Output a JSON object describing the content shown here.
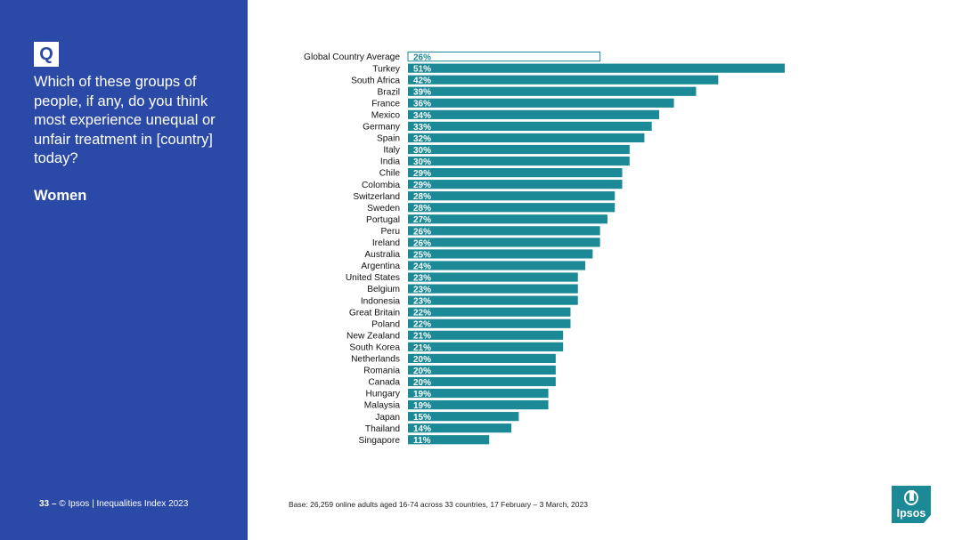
{
  "sidebar": {
    "badge": "Q",
    "question": "Which of these groups of people, if any, do you think most experience unequal or unfair treatment in [country] today?",
    "subtitle": "Women",
    "page_number": "33",
    "page_sep": "–",
    "copyright": "© Ipsos | Inequalities Index 2023"
  },
  "footer": {
    "base": "Base: 26,259 online adults aged 16-74 across 33 countries, 17 February – 3 March, 2023"
  },
  "logo": {
    "text": "Ipsos"
  },
  "colors": {
    "sidebar": "#2b4aa8",
    "bar": "#1b8a96",
    "average_outline": "#1b8a96"
  },
  "chart_data": {
    "type": "bar",
    "orientation": "horizontal",
    "value_suffix": "%",
    "xlim": [
      0,
      51
    ],
    "categories": [
      "Global Country Average",
      "Turkey",
      "South Africa",
      "Brazil",
      "France",
      "Mexico",
      "Germany",
      "Spain",
      "Italy",
      "India",
      "Chile",
      "Colombia",
      "Switzerland",
      "Sweden",
      "Portugal",
      "Peru",
      "Ireland",
      "Australia",
      "Argentina",
      "United States",
      "Belgium",
      "Indonesia",
      "Great Britain",
      "Poland",
      "New Zealand",
      "South Korea",
      "Netherlands",
      "Romania",
      "Canada",
      "Hungary",
      "Malaysia",
      "Japan",
      "Thailand",
      "Singapore"
    ],
    "values": [
      26,
      51,
      42,
      39,
      36,
      34,
      33,
      32,
      30,
      30,
      29,
      29,
      28,
      28,
      27,
      26,
      26,
      25,
      24,
      23,
      23,
      23,
      22,
      22,
      21,
      21,
      20,
      20,
      20,
      19,
      19,
      15,
      14,
      11
    ],
    "labels": [
      "26%",
      "51%",
      "42%",
      "39%",
      "36%",
      "34%",
      "33%",
      "32%",
      "30%",
      "30%",
      "29%",
      "29%",
      "28%",
      "28%",
      "27%",
      "26%",
      "26%",
      "25%",
      "24%",
      "23%",
      "23%",
      "23%",
      "22%",
      "22%",
      "21%",
      "21%",
      "20%",
      "20%",
      "20%",
      "19%",
      "19%",
      "15%",
      "14%",
      "11%"
    ],
    "highlight_index": 0
  }
}
